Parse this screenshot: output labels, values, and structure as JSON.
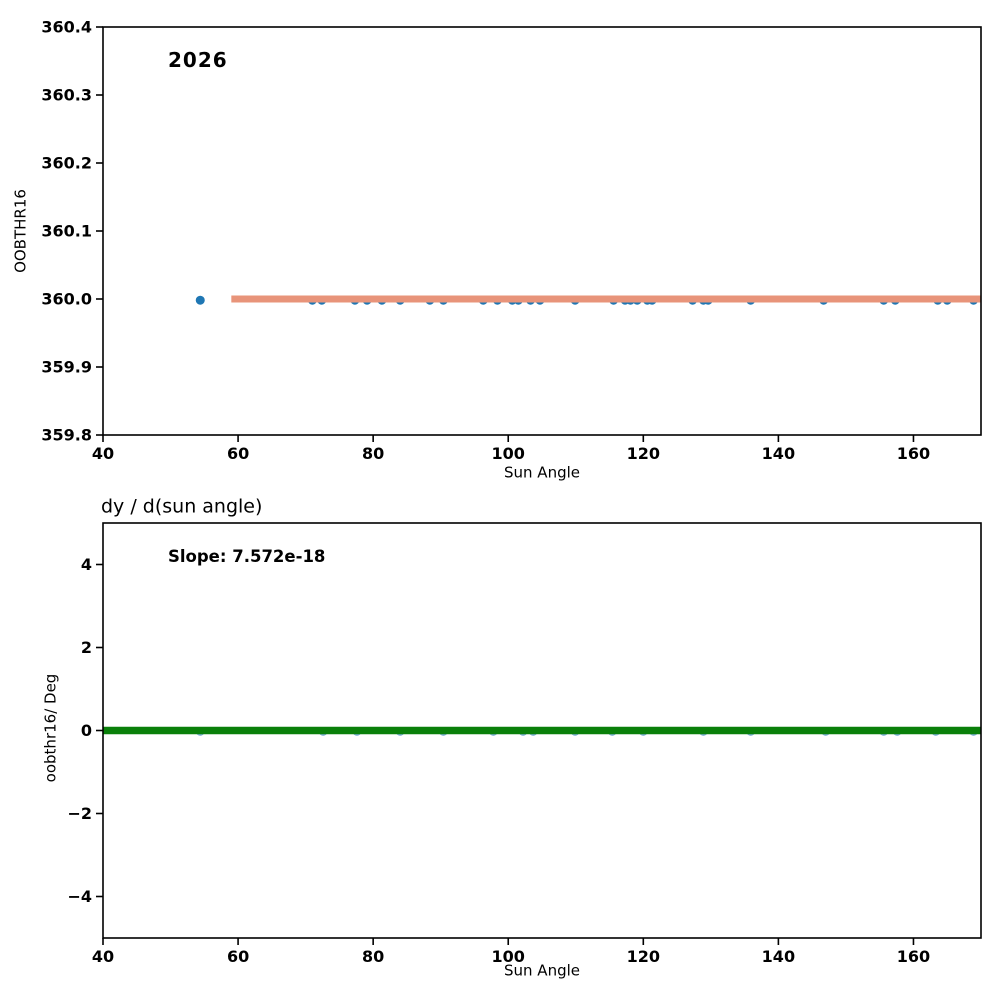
{
  "figure": {
    "background": "#ffffff",
    "axis_color": "#000000"
  },
  "chart_data": [
    {
      "type": "scatter",
      "annotation": "2026",
      "xlabel": "Sun Angle",
      "ylabel": "OOBTHR16",
      "xlim": [
        40,
        170
      ],
      "ylim": [
        359.8,
        360.4
      ],
      "xticks": [
        40,
        60,
        80,
        100,
        120,
        140,
        160
      ],
      "yticks": [
        359.8,
        359.9,
        360.0,
        360.1,
        360.2,
        360.3,
        360.4
      ],
      "ytick_labels": [
        "359.8",
        "359.9",
        "360.0",
        "360.1",
        "360.2",
        "360.3",
        "360.4"
      ],
      "grid": false,
      "legend": null,
      "series": [
        {
          "name": "oobthr16-points",
          "kind": "scatter",
          "color": "#1f77b4",
          "radius": 4.5,
          "x": [
            54.4,
            71.0,
            72.4,
            77.3,
            79.1,
            81.3,
            84.0,
            88.4,
            90.4,
            96.3,
            98.4,
            100.6,
            101.5,
            103.3,
            104.7,
            109.9,
            115.6,
            117.3,
            118.1,
            119.1,
            120.6,
            121.3,
            127.3,
            128.9,
            129.6,
            135.9,
            146.7,
            155.6,
            157.3,
            163.6,
            165.0,
            168.9
          ],
          "y_const": 360.0
        },
        {
          "name": "fit-line",
          "kind": "line",
          "color": "#e8947a",
          "width": 7,
          "x": [
            59.0,
            170.0
          ],
          "y": [
            360.0,
            360.0
          ]
        }
      ]
    },
    {
      "type": "scatter",
      "title": "dy / d(sun angle)",
      "annotation": "Slope: 7.572e-18",
      "xlabel": "Sun Angle",
      "ylabel": "oobthr16/ Deg",
      "xlim": [
        40,
        170
      ],
      "ylim": [
        -5,
        5
      ],
      "xticks": [
        40,
        60,
        80,
        100,
        120,
        140,
        160
      ],
      "yticks": [
        -4,
        -2,
        0,
        2,
        4
      ],
      "ytick_labels": [
        "−4",
        "−2",
        "0",
        "2",
        "4"
      ],
      "grid": false,
      "legend": null,
      "series": [
        {
          "name": "derivative-points",
          "kind": "scatter",
          "color": "#7fb0d6",
          "radius": 4.2,
          "x": [
            54.4,
            72.6,
            77.6,
            84.0,
            90.4,
            97.8,
            102.2,
            103.7,
            109.9,
            115.4,
            120.0,
            128.9,
            135.9,
            147.0,
            155.6,
            157.6,
            163.3,
            168.9
          ],
          "y_const": 0
        },
        {
          "name": "derivative-line",
          "kind": "line",
          "color": "#0a800a",
          "width": 7.5,
          "x": [
            40.0,
            170.0
          ],
          "y": [
            0,
            0
          ]
        }
      ]
    }
  ]
}
